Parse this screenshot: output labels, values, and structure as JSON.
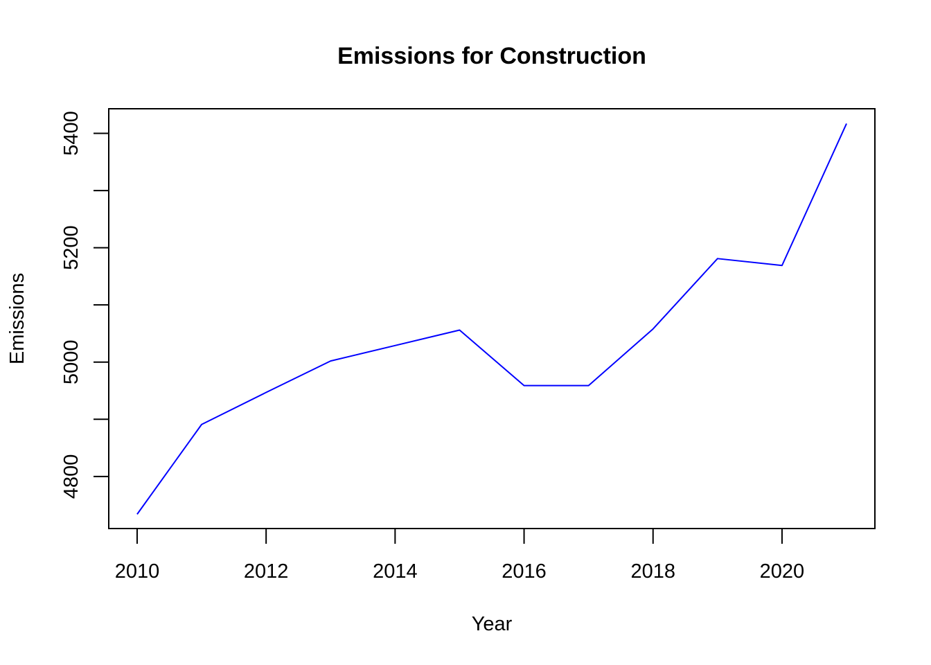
{
  "chart_data": {
    "type": "line",
    "title": "Emissions for Construction",
    "xlabel": "Year",
    "ylabel": "Emissions",
    "x": [
      2010,
      2011,
      2012,
      2013,
      2014,
      2015,
      2016,
      2017,
      2018,
      2019,
      2020,
      2021
    ],
    "series": [
      {
        "values": [
          4734,
          4891,
          4947,
          5002,
          5029,
          5056,
          4959,
          4959,
          5058,
          5181,
          5169,
          5417
        ],
        "color": "#0000ff"
      }
    ],
    "x_ticks": [
      "2010",
      "2012",
      "2014",
      "2016",
      "2018",
      "2020"
    ],
    "y_ticks": [
      4800,
      4900,
      5000,
      5100,
      5200,
      5300,
      5400
    ],
    "y_tick_labels": [
      "4800",
      "5000",
      "5200",
      "5400"
    ],
    "xlim": [
      2009.56,
      2021.44
    ],
    "ylim": [
      4709,
      5443
    ],
    "grid": false
  }
}
